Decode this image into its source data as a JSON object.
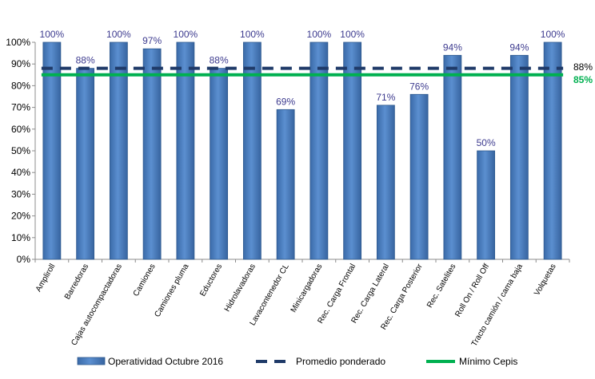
{
  "chart_data": {
    "type": "bar",
    "categories": [
      "Ampliroll",
      "Barredoras",
      "Cajas autocompactadoras",
      "Camiones",
      "Camiones pluma",
      "Eductores",
      "Hidrolavadoras",
      "Lavacontenedor CL",
      "Minicargadoras",
      "Rec. Carga Frontal",
      "Rec. Carga Lateral",
      "Rec. Carga Posterior",
      "Rec. Satelites",
      "Roll On / Roll Off",
      "Tracto camión / cama baja",
      "Volquetas"
    ],
    "series": [
      {
        "name": "Operatividad Octubre 2016",
        "values": [
          100,
          88,
          100,
          97,
          100,
          88,
          100,
          69,
          100,
          100,
          71,
          76,
          94,
          50,
          94,
          100
        ],
        "labels": [
          "100%",
          "88%",
          "100%",
          "97%",
          "100%",
          "88%",
          "100%",
          "69%",
          "100%",
          "100%",
          "71%",
          "76%",
          "94%",
          "50%",
          "94%",
          "100%"
        ],
        "color": "#4f81bd"
      }
    ],
    "reference_lines": [
      {
        "name": "Promedio ponderado",
        "value": 88,
        "label": "88%",
        "style": "dashed",
        "color": "#1f3a68"
      },
      {
        "name": "Mínimo Cepis",
        "value": 85,
        "label": "85%",
        "style": "solid",
        "color": "#00b050"
      }
    ],
    "y_ticks": [
      "0%",
      "10%",
      "20%",
      "30%",
      "40%",
      "50%",
      "60%",
      "70%",
      "80%",
      "90%",
      "100%"
    ],
    "ylim": [
      0,
      100
    ],
    "grid": false,
    "legend_position": "bottom"
  }
}
